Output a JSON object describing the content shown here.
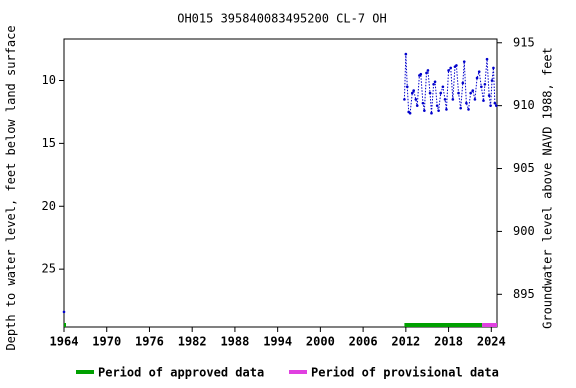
{
  "chart_data": {
    "type": "line",
    "title": "OH015 395840083495200 CL-7 OH",
    "y_label": "Depth to water level, feet below land surface",
    "y2_label": "Groundwater level above NAVD 1988, feet",
    "xlim": [
      1964,
      2024.8
    ],
    "xticks": [
      1964,
      1970,
      1976,
      1982,
      1988,
      1994,
      2000,
      2006,
      2012,
      2018,
      2024
    ],
    "ylim": [
      29.6,
      6.7
    ],
    "yticks": [
      10,
      15,
      20,
      25
    ],
    "y2lim": [
      892.4,
      915.3
    ],
    "y2ticks": [
      895,
      900,
      905,
      910,
      915
    ],
    "series": [
      {
        "name": "Depth to water level",
        "color": "#0000cc",
        "x": [
          1964,
          null,
          2011.8,
          2012.0,
          2012.2,
          2012.4,
          2012.6,
          2012.9,
          2013.1,
          2013.4,
          2013.6,
          2013.9,
          2014.1,
          2014.4,
          2014.6,
          2014.9,
          2015.1,
          2015.4,
          2015.6,
          2015.9,
          2016.1,
          2016.4,
          2016.6,
          2016.9,
          2017.2,
          2017.5,
          2017.7,
          2018.0,
          2018.3,
          2018.6,
          2018.9,
          2019.1,
          2019.4,
          2019.7,
          2020.0,
          2020.2,
          2020.5,
          2020.8,
          2021.1,
          2021.4,
          2021.7,
          2022.0,
          2022.3,
          2022.6,
          2022.9,
          2023.1,
          2023.4,
          2023.7,
          2023.9,
          2024.1,
          2024.3,
          2024.5,
          2024.7
        ],
        "values": [
          28.4,
          null,
          11.5,
          7.9,
          10.5,
          12.5,
          12.6,
          11,
          10.8,
          11.5,
          12,
          9.6,
          9.5,
          11.8,
          12.4,
          9.4,
          9.2,
          11,
          12.6,
          10.3,
          10.1,
          12,
          12.4,
          11,
          10.5,
          11.5,
          12.3,
          9.2,
          9,
          11.5,
          8.9,
          8.8,
          11,
          12.2,
          10.2,
          8.5,
          11.8,
          12.3,
          11,
          10.8,
          11.5,
          9.8,
          9.3,
          10.5,
          11.6,
          10.3,
          8.3,
          11.2,
          12,
          10,
          9,
          11.8,
          12
        ]
      }
    ],
    "periods": [
      {
        "name": "Period of approved data",
        "color": "#00a000",
        "ranges": [
          [
            1964,
            1964.2
          ],
          [
            2011.8,
            2022.7
          ]
        ]
      },
      {
        "name": "Period of provisional data",
        "color": "#e040e0",
        "ranges": [
          [
            2022.7,
            2024.8
          ]
        ]
      }
    ]
  }
}
